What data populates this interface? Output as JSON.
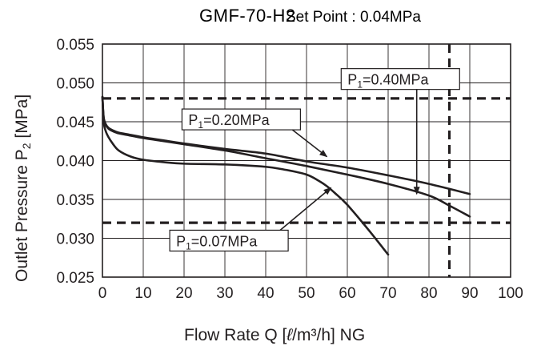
{
  "chart_data": {
    "type": "line",
    "title": "GMF-70-H2",
    "subtitle": "Set Point : 0.04MPa",
    "xlabel": "Flow Rate  Q  [ ℓ/m³/h] NG",
    "xlabel_parts": {
      "prefix": "Flow  Rate  Q  [",
      "unit_l": "ℓ",
      "unit_rest": "/m³/h] NG"
    },
    "ylabel_parts": {
      "prefix": "Outlet  Pressure  P",
      "sub": "2",
      "suffix": " [MPa]"
    },
    "xlim": [
      0,
      100
    ],
    "ylim": [
      0.025,
      0.055
    ],
    "x_ticks": [
      0,
      10,
      20,
      30,
      40,
      50,
      60,
      70,
      80,
      90,
      100
    ],
    "x_tick_labels": [
      "0",
      "10",
      "20",
      "30",
      "40",
      "50",
      "60",
      "70",
      "80",
      "90",
      "100"
    ],
    "y_ticks": [
      0.025,
      0.03,
      0.035,
      0.04,
      0.045,
      0.05,
      0.055
    ],
    "y_tick_labels": [
      "0.025",
      "0.030",
      "0.035",
      "0.040",
      "0.045",
      "0.050",
      "0.055"
    ],
    "grid": true,
    "reference_lines": [
      {
        "axis": "y",
        "value": 0.048,
        "style": "dashed"
      },
      {
        "axis": "y",
        "value": 0.032,
        "style": "dashed"
      },
      {
        "axis": "x",
        "value": 85,
        "style": "dashed"
      }
    ],
    "series": [
      {
        "name": "P1=0.40MPa",
        "label_main": "P",
        "label_sub": "1",
        "label_rest": "=0.40MPa",
        "x": [
          0,
          0.3,
          0.8,
          1.5,
          2.5,
          4,
          6,
          10,
          15,
          20,
          30,
          40,
          50,
          60,
          70,
          80,
          85,
          90
        ],
        "y": [
          0.0482,
          0.0455,
          0.0446,
          0.0441,
          0.0438,
          0.0435,
          0.0433,
          0.0429,
          0.0425,
          0.0421,
          0.0413,
          0.0403,
          0.0393,
          0.0382,
          0.037,
          0.0355,
          0.0342,
          0.0328
        ]
      },
      {
        "name": "P1=0.20MPa",
        "label_main": "P",
        "label_sub": "1",
        "label_rest": "=0.20MPa",
        "x": [
          0,
          0.3,
          0.8,
          1.5,
          2.5,
          4,
          6,
          10,
          15,
          20,
          30,
          40,
          50,
          60,
          70,
          80,
          90
        ],
        "y": [
          0.0482,
          0.0456,
          0.0447,
          0.0442,
          0.0439,
          0.0436,
          0.0434,
          0.043,
          0.0426,
          0.0422,
          0.0415,
          0.0409,
          0.0399,
          0.0391,
          0.0381,
          0.037,
          0.0357
        ]
      },
      {
        "name": "P1=0.07MPa",
        "label_main": "P",
        "label_sub": "1",
        "label_rest": "=0.07MPa",
        "x": [
          0,
          0.3,
          0.8,
          1.5,
          2.5,
          4,
          7,
          10,
          15,
          20,
          30,
          40,
          45,
          50,
          53,
          55,
          57,
          60,
          65,
          70
        ],
        "y": [
          0.0482,
          0.045,
          0.0438,
          0.043,
          0.0422,
          0.0413,
          0.0405,
          0.0401,
          0.0398,
          0.0396,
          0.0395,
          0.0392,
          0.0388,
          0.0382,
          0.0374,
          0.0367,
          0.0358,
          0.0343,
          0.0312,
          0.0279
        ]
      }
    ],
    "annotations": [
      {
        "series": 0,
        "label_at": [
          73,
          0.0505
        ],
        "arrow_to": [
          77,
          0.0357
        ]
      },
      {
        "series": 1,
        "label_at": [
          34,
          0.0453
        ],
        "arrow_to": [
          55,
          0.0405
        ]
      },
      {
        "series": 2,
        "label_at": [
          31,
          0.0297
        ],
        "arrow_to": [
          56,
          0.0365
        ]
      }
    ]
  }
}
